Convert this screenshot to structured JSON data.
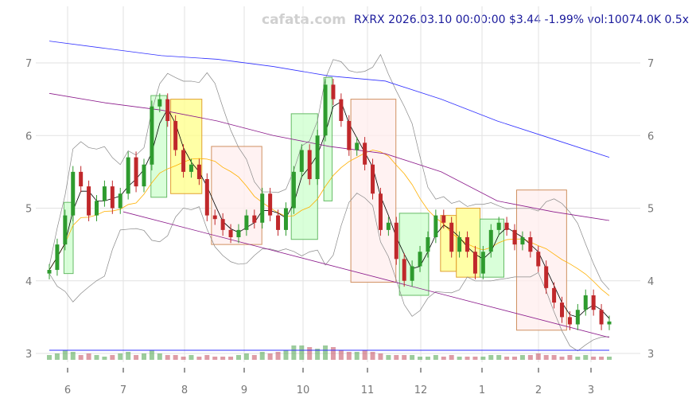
{
  "header": {
    "watermark": "cafata.com",
    "title": "RXRX 2026.03.10 00:00:00 $3.44 -1.99% vol:10074.0K 0.5x"
  },
  "chart_data": {
    "type": "candlestick",
    "x_range": [
      "2025-05-27",
      "2026-03-10"
    ],
    "ylim": [
      2.75,
      7.8
    ],
    "grid": true,
    "x_ticks": [
      {
        "label": "6",
        "date": "2025-06-01"
      },
      {
        "label": "7",
        "date": "2025-07-01"
      },
      {
        "label": "8",
        "date": "2025-08-01"
      },
      {
        "label": "9",
        "date": "2025-09-01"
      },
      {
        "label": "10",
        "date": "2025-10-01"
      },
      {
        "label": "11",
        "date": "2025-11-01"
      },
      {
        "label": "12",
        "date": "2025-12-01"
      },
      {
        "label": "1",
        "date": "2026-01-01"
      },
      {
        "label": "2",
        "date": "2026-02-01"
      },
      {
        "label": "3",
        "date": "2026-03-01"
      }
    ],
    "y_ticks": [
      "3",
      "4",
      "5",
      "6",
      "7"
    ],
    "closes": [
      4.15,
      4.5,
      4.9,
      5.5,
      5.3,
      4.9,
      5.1,
      5.3,
      5.0,
      5.2,
      5.7,
      5.3,
      5.6,
      6.4,
      6.5,
      6.2,
      5.8,
      5.5,
      5.6,
      5.4,
      4.9,
      4.85,
      4.7,
      4.6,
      4.7,
      4.9,
      4.8,
      5.2,
      4.9,
      4.7,
      5.0,
      5.5,
      5.8,
      5.4,
      6.0,
      6.7,
      6.5,
      6.2,
      5.8,
      5.9,
      5.6,
      5.2,
      4.7,
      4.8,
      4.3,
      4.0,
      4.2,
      4.4,
      4.6,
      4.9,
      4.8,
      4.4,
      4.6,
      4.4,
      4.1,
      4.4,
      4.7,
      4.8,
      4.7,
      4.5,
      4.6,
      4.4,
      4.2,
      3.9,
      3.7,
      3.5,
      3.4,
      3.6,
      3.8,
      3.6,
      3.4,
      3.44
    ],
    "volumes": [
      3,
      4,
      6,
      5,
      3,
      4,
      3,
      2,
      3,
      4,
      5,
      3,
      4,
      6,
      4,
      3,
      3,
      2,
      3,
      2,
      3,
      2,
      2,
      2,
      3,
      4,
      3,
      5,
      4,
      5,
      6,
      9,
      9,
      8,
      7,
      9,
      8,
      6,
      5,
      5,
      6,
      5,
      4,
      3,
      3,
      3,
      3,
      2,
      2,
      3,
      2,
      3,
      2,
      2,
      2,
      2,
      3,
      3,
      2,
      2,
      3,
      3,
      4,
      3,
      3,
      2,
      3,
      2,
      3,
      2,
      2,
      2
    ],
    "boxes": [
      {
        "from": "2025-05-31",
        "to": "2025-06-04",
        "low": 4.1,
        "high": 5.08,
        "kind": "up"
      },
      {
        "from": "2025-07-15",
        "to": "2025-07-23",
        "low": 5.15,
        "high": 6.55,
        "kind": "up"
      },
      {
        "from": "2025-07-25",
        "to": "2025-08-10",
        "low": 5.2,
        "high": 6.5,
        "kind": "flat"
      },
      {
        "from": "2025-08-15",
        "to": "2025-09-10",
        "low": 4.5,
        "high": 5.85,
        "kind": "down"
      },
      {
        "from": "2025-09-25",
        "to": "2025-10-08",
        "low": 4.57,
        "high": 6.3,
        "kind": "up"
      },
      {
        "from": "2025-10-11",
        "to": "2025-10-15",
        "low": 5.1,
        "high": 6.8,
        "kind": "up"
      },
      {
        "from": "2025-10-24",
        "to": "2025-11-17",
        "low": 3.98,
        "high": 6.5,
        "kind": "down"
      },
      {
        "from": "2025-11-19",
        "to": "2025-12-05",
        "low": 3.8,
        "high": 4.93,
        "kind": "up"
      },
      {
        "from": "2025-12-11",
        "to": "2025-12-19",
        "low": 4.13,
        "high": 4.9,
        "kind": "flat"
      },
      {
        "from": "2025-12-19",
        "to": "2025-12-31",
        "low": 4.05,
        "high": 5.0,
        "kind": "flat"
      },
      {
        "from": "2025-12-31",
        "to": "2026-01-13",
        "low": 4.05,
        "high": 4.85,
        "kind": "up"
      },
      {
        "from": "2026-01-20",
        "to": "2026-02-16",
        "low": 3.32,
        "high": 5.25,
        "kind": "down"
      }
    ],
    "long_ma": [
      7.3,
      7.2,
      7.1,
      7.05,
      6.95,
      6.82,
      6.75,
      6.5,
      6.2,
      5.95,
      5.7
    ],
    "mid_ma": [
      6.58,
      6.45,
      6.35,
      6.2,
      6.0,
      5.85,
      5.75,
      5.5,
      5.1,
      4.95,
      4.83
    ],
    "trend_line": {
      "from": [
        "2025-07-01",
        4.95
      ],
      "to": [
        "2026-03-10",
        3.22
      ]
    },
    "colors": {
      "up": "#2e9b2e",
      "down": "#c0282b",
      "long_ma": "#3030ff",
      "mid_ma": "#8b1a8b",
      "short_ma": "#000000",
      "ma20": "#ffb000",
      "band": "#888888"
    }
  }
}
